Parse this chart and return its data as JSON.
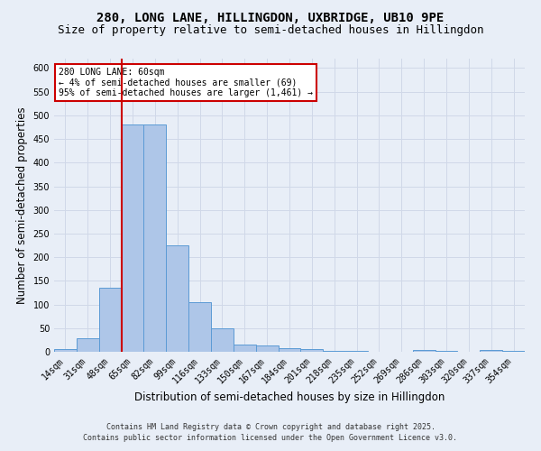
{
  "title": "280, LONG LANE, HILLINGDON, UXBRIDGE, UB10 9PE",
  "subtitle": "Size of property relative to semi-detached houses in Hillingdon",
  "xlabel": "Distribution of semi-detached houses by size in Hillingdon",
  "ylabel": "Number of semi-detached properties",
  "categories": [
    "14sqm",
    "31sqm",
    "48sqm",
    "65sqm",
    "82sqm",
    "99sqm",
    "116sqm",
    "133sqm",
    "150sqm",
    "167sqm",
    "184sqm",
    "201sqm",
    "218sqm",
    "235sqm",
    "252sqm",
    "269sqm",
    "286sqm",
    "303sqm",
    "320sqm",
    "337sqm",
    "354sqm"
  ],
  "values": [
    5,
    28,
    135,
    480,
    480,
    225,
    105,
    50,
    15,
    13,
    7,
    5,
    2,
    2,
    0,
    0,
    3,
    2,
    0,
    3,
    2
  ],
  "bar_color": "#aec6e8",
  "bar_edge_color": "#5b9bd5",
  "red_line_index": 3,
  "annotation_title": "280 LONG LANE: 60sqm",
  "annotation_line1": "← 4% of semi-detached houses are smaller (69)",
  "annotation_line2": "95% of semi-detached houses are larger (1,461) →",
  "annotation_box_color": "#ffffff",
  "annotation_box_edge": "#cc0000",
  "red_line_color": "#cc0000",
  "ylim": [
    0,
    620
  ],
  "yticks": [
    0,
    50,
    100,
    150,
    200,
    250,
    300,
    350,
    400,
    450,
    500,
    550,
    600
  ],
  "bg_color": "#e8eef7",
  "grid_color": "#d0d8e8",
  "footer1": "Contains HM Land Registry data © Crown copyright and database right 2025.",
  "footer2": "Contains public sector information licensed under the Open Government Licence v3.0.",
  "title_fontsize": 10,
  "subtitle_fontsize": 9,
  "axis_label_fontsize": 8.5,
  "tick_fontsize": 7,
  "ann_fontsize": 7,
  "footer_fontsize": 6
}
